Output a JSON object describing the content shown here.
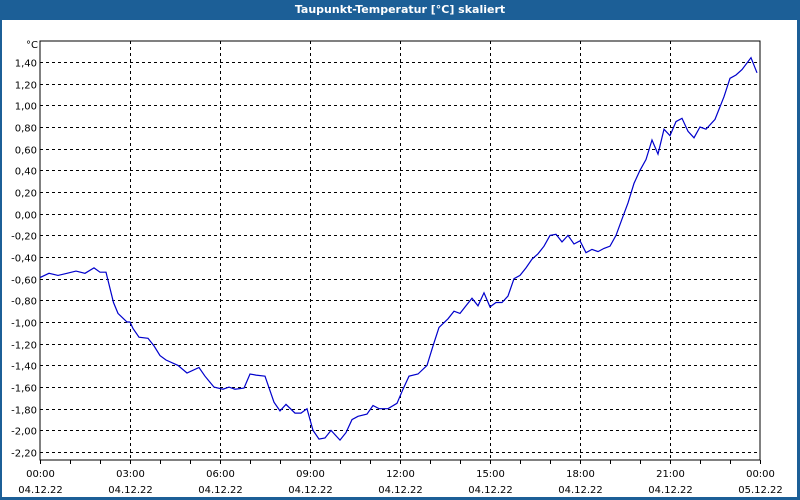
{
  "window": {
    "title": "Taupunkt-Temperatur [°C] skaliert"
  },
  "colors": {
    "titlebar": "#1c5f97",
    "line": "#0000cc",
    "grid": "#000000"
  },
  "chart_data": {
    "type": "line",
    "title": "Taupunkt-Temperatur [°C] skaliert",
    "xlabel": "",
    "ylabel": "°C",
    "ylim": [
      -2.25,
      1.55
    ],
    "grid": true,
    "legend": "none",
    "y_ticks": [
      "1,40",
      "1,20",
      "1,00",
      "0,80",
      "0,60",
      "0,40",
      "0,20",
      "0,00",
      "-0,20",
      "-0,40",
      "-0,60",
      "-0,80",
      "-1,00",
      "-1,20",
      "-1,40",
      "-1,60",
      "-1,80",
      "-2,00",
      "-2,20"
    ],
    "y_tick_values": [
      1.4,
      1.2,
      1.0,
      0.8,
      0.6,
      0.4,
      0.2,
      0.0,
      -0.2,
      -0.4,
      -0.6,
      -0.8,
      -1.0,
      -1.2,
      -1.4,
      -1.6,
      -1.8,
      -2.0,
      -2.2
    ],
    "x_ticks": [
      {
        "time": "00:00",
        "date": "04.12.22"
      },
      {
        "time": "03:00",
        "date": "04.12.22"
      },
      {
        "time": "06:00",
        "date": "04.12.22"
      },
      {
        "time": "09:00",
        "date": "04.12.22"
      },
      {
        "time": "12:00",
        "date": "04.12.22"
      },
      {
        "time": "15:00",
        "date": "04.12.22"
      },
      {
        "time": "18:00",
        "date": "04.12.22"
      },
      {
        "time": "21:00",
        "date": "04.12.22"
      },
      {
        "time": "00:00",
        "date": "05.12.22"
      }
    ],
    "series": [
      {
        "name": "Taupunkt-Temperatur",
        "unit": "°C",
        "x_hours": [
          0,
          0.3,
          0.6,
          0.9,
          1.2,
          1.5,
          1.8,
          2.0,
          2.2,
          2.45,
          2.6,
          2.9,
          3.0,
          3.1,
          3.3,
          3.6,
          3.8,
          4.0,
          4.2,
          4.6,
          4.9,
          5.3,
          5.5,
          5.8,
          6.1,
          6.3,
          6.5,
          6.8,
          7.0,
          7.2,
          7.5,
          7.8,
          8.0,
          8.2,
          8.5,
          8.7,
          8.9,
          9.1,
          9.3,
          9.5,
          9.7,
          10.0,
          10.2,
          10.4,
          10.6,
          10.9,
          11.1,
          11.3,
          11.6,
          11.9,
          12.1,
          12.3,
          12.6,
          12.9,
          13.1,
          13.3,
          13.6,
          13.8,
          14.0,
          14.2,
          14.4,
          14.6,
          14.8,
          15.0,
          15.2,
          15.4,
          15.6,
          15.8,
          16.0,
          16.2,
          16.4,
          16.6,
          16.8,
          17.0,
          17.2,
          17.4,
          17.6,
          17.8,
          18.0,
          18.2,
          18.4,
          18.6,
          18.8,
          19.0,
          19.2,
          19.4,
          19.6,
          19.8,
          20.0,
          20.2,
          20.4,
          20.6,
          20.8,
          21.0,
          21.2,
          21.4,
          21.6,
          21.8,
          22.0,
          22.2,
          22.5,
          22.8,
          23.0,
          23.2,
          23.4,
          23.7,
          23.9
        ],
        "values": [
          -0.59,
          -0.55,
          -0.57,
          -0.55,
          -0.53,
          -0.55,
          -0.5,
          -0.54,
          -0.54,
          -0.82,
          -0.92,
          -1.0,
          -1.0,
          -1.06,
          -1.14,
          -1.15,
          -1.22,
          -1.31,
          -1.35,
          -1.4,
          -1.47,
          -1.42,
          -1.5,
          -1.6,
          -1.62,
          -1.6,
          -1.62,
          -1.61,
          -1.48,
          -1.49,
          -1.5,
          -1.74,
          -1.82,
          -1.76,
          -1.84,
          -1.84,
          -1.8,
          -2.0,
          -2.08,
          -2.07,
          -2.0,
          -2.09,
          -2.02,
          -1.9,
          -1.87,
          -1.85,
          -1.77,
          -1.8,
          -1.8,
          -1.75,
          -1.62,
          -1.5,
          -1.48,
          -1.4,
          -1.22,
          -1.05,
          -0.97,
          -0.9,
          -0.92,
          -0.85,
          -0.78,
          -0.85,
          -0.73,
          -0.86,
          -0.82,
          -0.82,
          -0.76,
          -0.6,
          -0.57,
          -0.5,
          -0.42,
          -0.37,
          -0.3,
          -0.2,
          -0.19,
          -0.26,
          -0.2,
          -0.28,
          -0.25,
          -0.36,
          -0.33,
          -0.35,
          -0.32,
          -0.3,
          -0.2,
          -0.05,
          0.1,
          0.28,
          0.4,
          0.5,
          0.68,
          0.55,
          0.78,
          0.72,
          0.85,
          0.88,
          0.76,
          0.7,
          0.8,
          0.78,
          0.87,
          1.08,
          1.25,
          1.28,
          1.33,
          1.44,
          1.3
        ]
      }
    ]
  }
}
